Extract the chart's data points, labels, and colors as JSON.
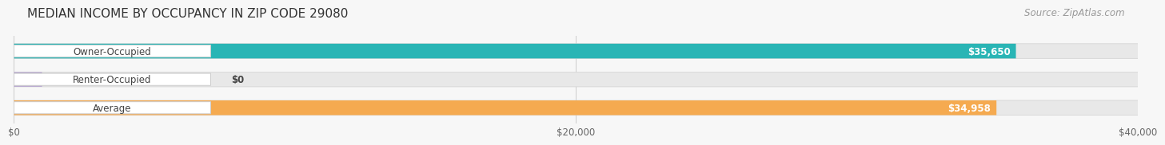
{
  "title": "MEDIAN INCOME BY OCCUPANCY IN ZIP CODE 29080",
  "source": "Source: ZipAtlas.com",
  "categories": [
    "Owner-Occupied",
    "Renter-Occupied",
    "Average"
  ],
  "values": [
    35650,
    0,
    34958
  ],
  "bar_colors": [
    "#29b5b5",
    "#b8a8d0",
    "#f5aa50"
  ],
  "track_color": "#e8e8e8",
  "track_border_color": "#d0d0d0",
  "label_color": "#444444",
  "value_labels": [
    "$35,650",
    "$0",
    "$34,958"
  ],
  "x_ticks": [
    0,
    20000,
    40000
  ],
  "x_tick_labels": [
    "$0",
    "$20,000",
    "$40,000"
  ],
  "xlim": [
    0,
    40000
  ],
  "bar_height": 0.52,
  "background_color": "#f7f7f7",
  "title_fontsize": 11,
  "source_fontsize": 8.5,
  "label_fontsize": 8.5,
  "value_fontsize": 8.5
}
